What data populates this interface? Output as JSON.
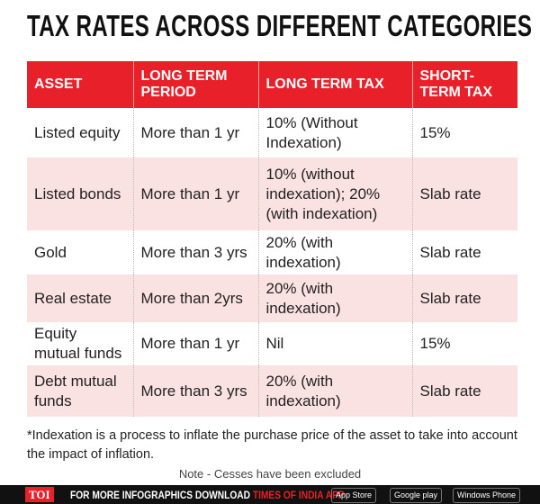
{
  "title": "TAX RATES ACROSS DIFFERENT CATEGORIES",
  "table": {
    "header": [
      "ASSET",
      "LONG TERM PERIOD",
      "LONG TERM TAX",
      "SHORT-TERM TAX"
    ],
    "rows": [
      [
        "Listed equity",
        "More than 1 yr",
        "10% (Without Indexation)",
        "15%"
      ],
      [
        "Listed bonds",
        "More than 1 yr",
        "10% (without indexation); 20% (with indexation)",
        "Slab rate"
      ],
      [
        "Gold",
        "More than 3 yrs",
        "20% (with indexation)",
        "Slab rate"
      ],
      [
        "Real estate",
        "More than 2yrs",
        "20% (with indexation)",
        "Slab rate"
      ],
      [
        "Equity mutual funds",
        "More than 1 yr",
        "Nil",
        "15%"
      ],
      [
        "Debt mutual funds",
        "More than 3 yrs",
        "20% (with indexation)",
        "Slab rate"
      ]
    ]
  },
  "footnote": "*Indexation is a process to inflate the purchase price of the asset to take into account the impact of inflation.",
  "note": "Note - Cesses have been excluded",
  "footer": {
    "logo": "TOI",
    "text": "FOR MORE INFOGRAPHICS DOWNLOAD",
    "app": "TIMES OF INDIA APP",
    "badges": [
      "App Store",
      "Google play",
      "Windows Phone"
    ]
  }
}
